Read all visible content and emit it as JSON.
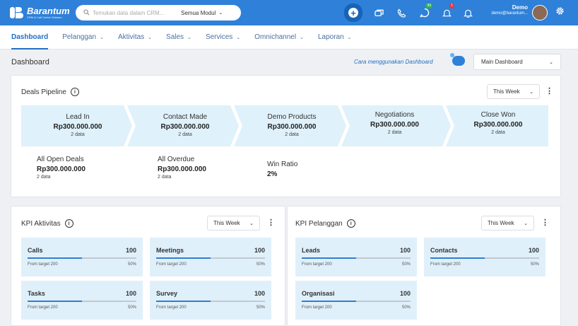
{
  "brand": {
    "name": "Barantum",
    "tagline": "CRM & Call Center Solution"
  },
  "search": {
    "placeholder": "Temukan data dalam CRM...",
    "module": "Semua Modul"
  },
  "notifications": {
    "whatsapp_count": "99",
    "alerts_count": "1"
  },
  "user": {
    "name": "Demo",
    "email": "demo@barantum..."
  },
  "nav": [
    {
      "label": "Dashboard",
      "has_menu": false
    },
    {
      "label": "Pelanggan",
      "has_menu": true
    },
    {
      "label": "Aktivitas",
      "has_menu": true
    },
    {
      "label": "Sales",
      "has_menu": true
    },
    {
      "label": "Services",
      "has_menu": true
    },
    {
      "label": "Omnichannel",
      "has_menu": true
    },
    {
      "label": "Laporan",
      "has_menu": true
    }
  ],
  "page": {
    "title": "Dashboard",
    "howto": "Cara menggunakan Dashboard",
    "dashboard_select": "Main Dashboard"
  },
  "deals": {
    "title": "Deals Pipeline",
    "period": "This Week",
    "stages": [
      {
        "name": "Lead In",
        "value": "Rp300.000.000",
        "count": "2 data"
      },
      {
        "name": "Contact Made",
        "value": "Rp300.000.000",
        "count": "2 data"
      },
      {
        "name": "Demo Products",
        "value": "Rp300.000.000",
        "count": "2 data"
      },
      {
        "name": "Negotiations",
        "value": "Rp300.000.000",
        "count": "2 data"
      },
      {
        "name": "Close Won",
        "value": "Rp300.000.000",
        "count": "2 data"
      }
    ],
    "open": {
      "name": "All Open Deals",
      "value": "Rp300.000.000",
      "count": "2 data"
    },
    "overdue": {
      "name": "All Overdue",
      "value": "Rp300.000.000",
      "count": "2 data"
    },
    "win": {
      "name": "Win Ratio",
      "value": "2%"
    }
  },
  "kpi_aktivitas": {
    "title": "KPI Aktivitas",
    "period": "This Week",
    "items": [
      {
        "name": "Calls",
        "value": "100",
        "target": "From target 200",
        "percent": "50%",
        "progress": 0.5
      },
      {
        "name": "Meetings",
        "value": "100",
        "target": "From target 200",
        "percent": "50%",
        "progress": 0.5
      },
      {
        "name": "Tasks",
        "value": "100",
        "target": "From target 200",
        "percent": "50%",
        "progress": 0.5
      },
      {
        "name": "Survey",
        "value": "100",
        "target": "From target 200",
        "percent": "50%",
        "progress": 0.5
      }
    ]
  },
  "kpi_pelanggan": {
    "title": "KPI Pelanggan",
    "period": "This Week",
    "items": [
      {
        "name": "Leads",
        "value": "100",
        "target": "From target 200",
        "percent": "50%",
        "progress": 0.5
      },
      {
        "name": "Contacts",
        "value": "100",
        "target": "From target 200",
        "percent": "50%",
        "progress": 0.5
      },
      {
        "name": "Organisasi",
        "value": "100",
        "target": "From target 200",
        "percent": "50%",
        "progress": 0.5
      }
    ]
  },
  "colors": {
    "primary": "#2f80d8",
    "pipeline_fill": "#dff1fa",
    "kpi_fill": "#e0f0fb",
    "progress": "#2f7fcf",
    "whatsapp_badge": "#2bb24c",
    "alert_badge": "#e53935"
  }
}
